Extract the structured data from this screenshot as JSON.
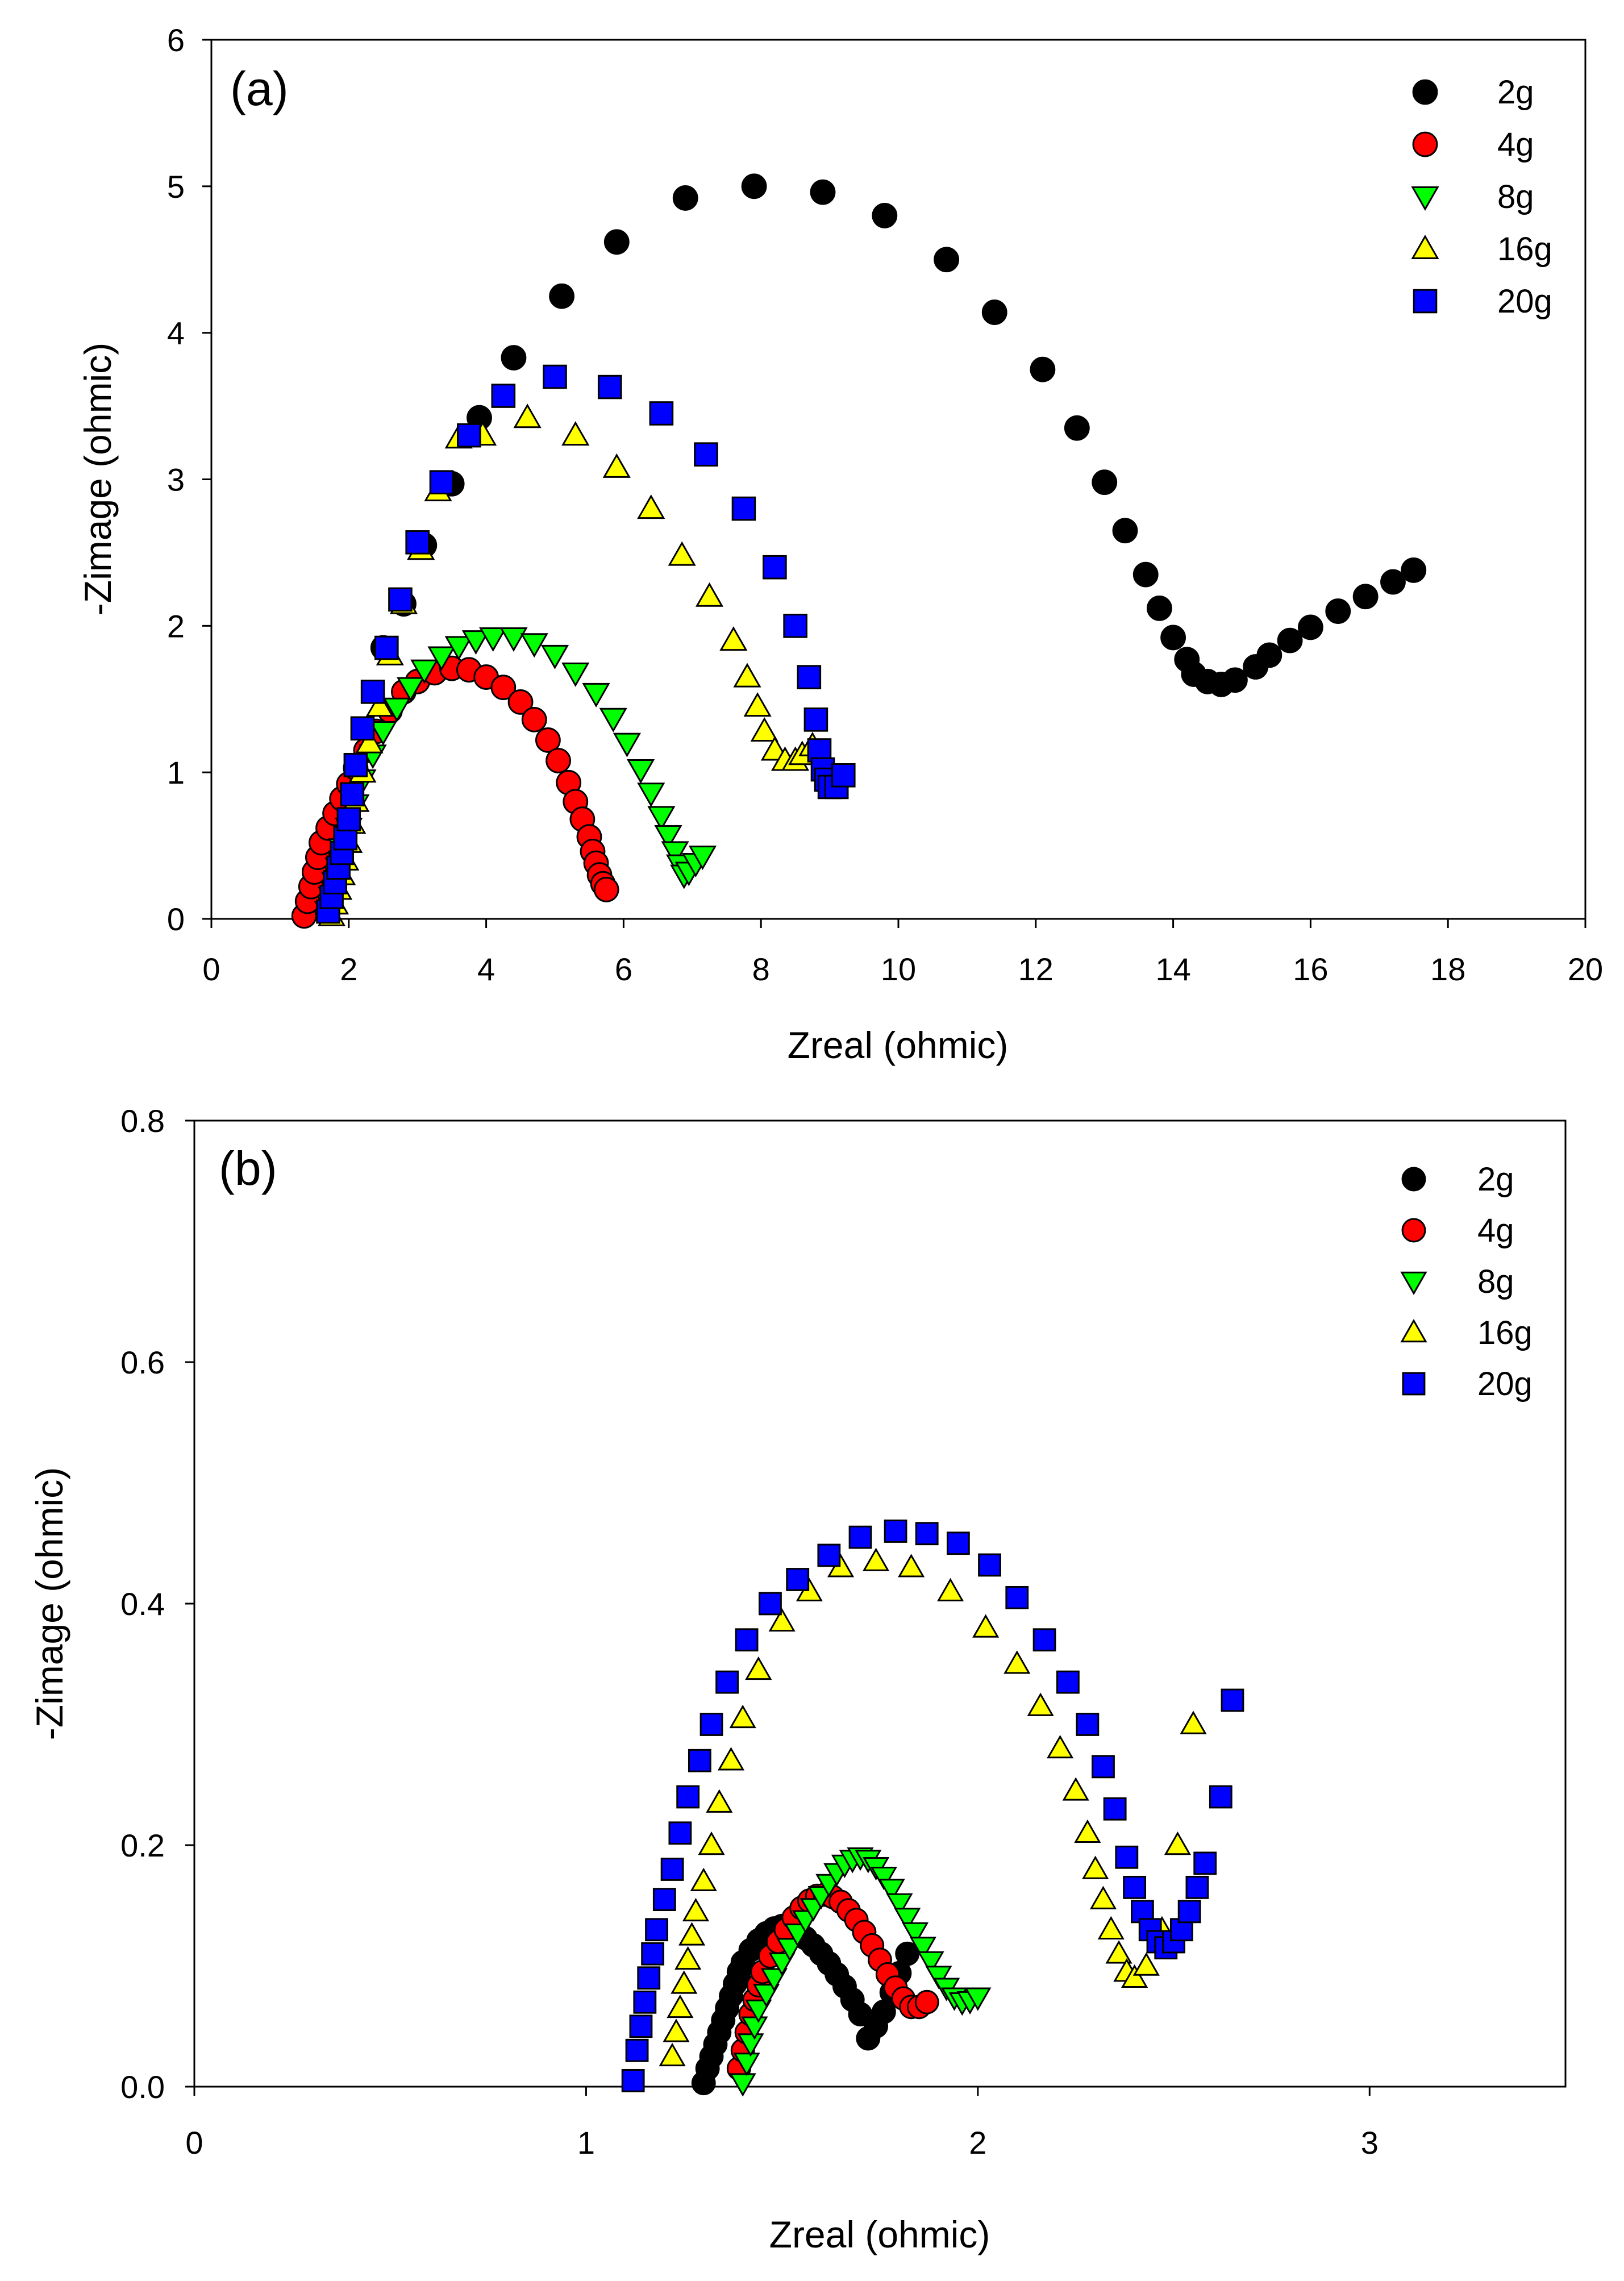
{
  "chart_data": [
    {
      "type": "scatter",
      "panel_label": "(a)",
      "xlabel": "Zreal (ohmic)",
      "ylabel": "-Zimage (ohmic)",
      "xlim": [
        0,
        20
      ],
      "ylim": [
        0,
        6
      ],
      "xticks": [
        0,
        2,
        4,
        6,
        8,
        10,
        12,
        14,
        16,
        18,
        20
      ],
      "yticks": [
        0,
        1,
        2,
        3,
        4,
        5,
        6
      ],
      "legend_position": "top-right",
      "series": [
        {
          "name": "2g",
          "marker": "circle",
          "color": "#000000",
          "x": [
            2.5,
            2.8,
            3.1,
            3.5,
            3.9,
            4.4,
            5.1,
            5.9,
            6.9,
            7.9,
            8.9,
            9.8,
            10.7,
            11.4,
            12.1,
            12.6,
            13.0,
            13.3,
            13.6,
            13.8,
            14.0,
            14.2,
            14.3,
            14.5,
            14.7,
            14.9,
            15.2,
            15.4,
            15.7,
            16.0,
            16.4,
            16.8,
            17.2,
            17.5
          ],
          "y": [
            1.85,
            2.15,
            2.55,
            2.97,
            3.42,
            3.83,
            4.25,
            4.62,
            4.92,
            5.0,
            4.96,
            4.8,
            4.5,
            4.14,
            3.75,
            3.35,
            2.98,
            2.65,
            2.35,
            2.12,
            1.92,
            1.77,
            1.67,
            1.62,
            1.6,
            1.63,
            1.72,
            1.8,
            1.9,
            1.99,
            2.1,
            2.2,
            2.3,
            2.38
          ]
        },
        {
          "name": "4g",
          "marker": "circle",
          "color": "#ff0000",
          "x": [
            1.35,
            1.4,
            1.45,
            1.5,
            1.55,
            1.6,
            1.7,
            1.8,
            1.9,
            2.0,
            2.1,
            2.25,
            2.4,
            2.6,
            2.8,
            3.0,
            3.25,
            3.5,
            3.75,
            4.0,
            4.25,
            4.5,
            4.7,
            4.9,
            5.05,
            5.2,
            5.3,
            5.4,
            5.5,
            5.55,
            5.6,
            5.65,
            5.7,
            5.75
          ],
          "y": [
            0.02,
            0.12,
            0.22,
            0.32,
            0.42,
            0.52,
            0.62,
            0.72,
            0.82,
            0.92,
            1.03,
            1.15,
            1.28,
            1.42,
            1.55,
            1.62,
            1.68,
            1.71,
            1.7,
            1.65,
            1.58,
            1.48,
            1.36,
            1.22,
            1.08,
            0.93,
            0.8,
            0.68,
            0.56,
            0.46,
            0.38,
            0.3,
            0.24,
            0.2
          ]
        },
        {
          "name": "8g",
          "marker": "triangle-down",
          "color": "#00ff00",
          "x": [
            1.7,
            1.75,
            1.8,
            1.85,
            1.9,
            2.0,
            2.1,
            2.2,
            2.35,
            2.5,
            2.7,
            2.9,
            3.1,
            3.35,
            3.6,
            3.85,
            4.1,
            4.4,
            4.7,
            5.0,
            5.3,
            5.6,
            5.85,
            6.05,
            6.25,
            6.4,
            6.55,
            6.65,
            6.75,
            6.82,
            6.88,
            6.95,
            7.05,
            7.15
          ],
          "y": [
            0.05,
            0.15,
            0.25,
            0.35,
            0.48,
            0.62,
            0.78,
            0.95,
            1.12,
            1.28,
            1.44,
            1.58,
            1.7,
            1.79,
            1.86,
            1.9,
            1.92,
            1.92,
            1.88,
            1.8,
            1.68,
            1.54,
            1.37,
            1.2,
            1.02,
            0.86,
            0.7,
            0.57,
            0.46,
            0.37,
            0.3,
            0.32,
            0.38,
            0.43
          ]
        },
        {
          "name": "16g",
          "marker": "triangle-up",
          "color": "#ffff00",
          "x": [
            1.75,
            1.8,
            1.85,
            1.9,
            1.95,
            2.0,
            2.05,
            2.1,
            2.2,
            2.3,
            2.45,
            2.6,
            2.8,
            3.05,
            3.3,
            3.6,
            3.95,
            4.6,
            5.3,
            5.9,
            6.4,
            6.85,
            7.25,
            7.6,
            7.8,
            7.95,
            8.05,
            8.2,
            8.35,
            8.5,
            8.6,
            8.75
          ],
          "y": [
            0.02,
            0.1,
            0.2,
            0.3,
            0.4,
            0.52,
            0.65,
            0.8,
            1.0,
            1.2,
            1.45,
            1.8,
            2.15,
            2.52,
            2.92,
            3.28,
            3.3,
            3.42,
            3.3,
            3.08,
            2.8,
            2.48,
            2.2,
            1.9,
            1.65,
            1.45,
            1.28,
            1.15,
            1.08,
            1.08,
            1.12,
            1.18
          ]
        },
        {
          "name": "20g",
          "marker": "square",
          "color": "#0000ff",
          "x": [
            1.7,
            1.75,
            1.8,
            1.85,
            1.9,
            1.95,
            2.0,
            2.05,
            2.1,
            2.2,
            2.35,
            2.55,
            2.75,
            3.0,
            3.35,
            3.75,
            4.25,
            5.0,
            5.8,
            6.55,
            7.2,
            7.75,
            8.2,
            8.5,
            8.7,
            8.8,
            8.85,
            8.9,
            8.95,
            9.0,
            9.1,
            9.2
          ],
          "y": [
            0.05,
            0.15,
            0.25,
            0.35,
            0.45,
            0.55,
            0.68,
            0.85,
            1.05,
            1.3,
            1.55,
            1.85,
            2.18,
            2.57,
            2.98,
            3.3,
            3.57,
            3.7,
            3.63,
            3.45,
            3.17,
            2.8,
            2.4,
            2.0,
            1.65,
            1.36,
            1.15,
            1.02,
            0.95,
            0.9,
            0.9,
            0.98
          ]
        }
      ]
    },
    {
      "type": "scatter",
      "panel_label": "(b)",
      "xlabel": "Zreal (ohmic)",
      "ylabel": "-Zimage (ohmic)",
      "xlim": [
        0,
        3.5
      ],
      "ylim": [
        0,
        0.8
      ],
      "xticks": [
        0,
        1,
        2,
        3
      ],
      "yticks": [
        0.0,
        0.2,
        0.4,
        0.6,
        0.8
      ],
      "legend_position": "top-right",
      "series": [
        {
          "name": "2g",
          "marker": "circle",
          "color": "#000000",
          "x": [
            1.3,
            1.31,
            1.32,
            1.33,
            1.34,
            1.35,
            1.36,
            1.37,
            1.38,
            1.39,
            1.4,
            1.42,
            1.44,
            1.46,
            1.48,
            1.5,
            1.52,
            1.54,
            1.56,
            1.58,
            1.6,
            1.62,
            1.64,
            1.66,
            1.68,
            1.7,
            1.72,
            1.74,
            1.76,
            1.78,
            1.8,
            1.82
          ],
          "y": [
            0.003,
            0.015,
            0.025,
            0.035,
            0.045,
            0.055,
            0.065,
            0.075,
            0.085,
            0.095,
            0.103,
            0.113,
            0.121,
            0.127,
            0.131,
            0.133,
            0.132,
            0.128,
            0.123,
            0.117,
            0.11,
            0.102,
            0.093,
            0.083,
            0.072,
            0.06,
            0.04,
            0.05,
            0.062,
            0.078,
            0.094,
            0.11
          ]
        },
        {
          "name": "4g",
          "marker": "circle",
          "color": "#ff0000",
          "x": [
            1.39,
            1.4,
            1.41,
            1.42,
            1.43,
            1.44,
            1.45,
            1.47,
            1.49,
            1.51,
            1.53,
            1.55,
            1.57,
            1.59,
            1.61,
            1.63,
            1.65,
            1.67,
            1.69,
            1.71,
            1.73,
            1.75,
            1.77,
            1.79,
            1.81,
            1.83,
            1.85,
            1.87
          ],
          "y": [
            0.015,
            0.03,
            0.045,
            0.06,
            0.072,
            0.084,
            0.095,
            0.108,
            0.12,
            0.13,
            0.14,
            0.148,
            0.154,
            0.158,
            0.159,
            0.157,
            0.153,
            0.146,
            0.138,
            0.128,
            0.117,
            0.105,
            0.093,
            0.082,
            0.073,
            0.066,
            0.066,
            0.07
          ]
        },
        {
          "name": "8g",
          "marker": "triangle-down",
          "color": "#00ff00",
          "x": [
            1.4,
            1.41,
            1.42,
            1.43,
            1.44,
            1.46,
            1.48,
            1.5,
            1.52,
            1.54,
            1.56,
            1.58,
            1.6,
            1.62,
            1.64,
            1.66,
            1.68,
            1.7,
            1.72,
            1.74,
            1.76,
            1.78,
            1.8,
            1.82,
            1.84,
            1.86,
            1.88,
            1.9,
            1.92,
            1.94,
            1.96,
            1.98,
            2.0
          ],
          "y": [
            0.003,
            0.02,
            0.036,
            0.05,
            0.064,
            0.077,
            0.09,
            0.103,
            0.115,
            0.127,
            0.138,
            0.148,
            0.158,
            0.168,
            0.177,
            0.184,
            0.188,
            0.19,
            0.188,
            0.182,
            0.174,
            0.164,
            0.152,
            0.14,
            0.128,
            0.116,
            0.104,
            0.092,
            0.082,
            0.074,
            0.07,
            0.071,
            0.074
          ]
        },
        {
          "name": "16g",
          "marker": "triangle-up",
          "color": "#ffff00",
          "x": [
            1.22,
            1.23,
            1.24,
            1.25,
            1.26,
            1.27,
            1.28,
            1.3,
            1.32,
            1.34,
            1.37,
            1.4,
            1.44,
            1.5,
            1.57,
            1.65,
            1.74,
            1.83,
            1.93,
            2.02,
            2.1,
            2.16,
            2.21,
            2.25,
            2.28,
            2.3,
            2.32,
            2.34,
            2.36,
            2.38,
            2.4,
            2.43,
            2.47,
            2.51,
            2.55
          ],
          "y": [
            0.025,
            0.045,
            0.065,
            0.085,
            0.105,
            0.125,
            0.145,
            0.17,
            0.2,
            0.235,
            0.27,
            0.305,
            0.345,
            0.385,
            0.41,
            0.43,
            0.435,
            0.43,
            0.41,
            0.38,
            0.35,
            0.315,
            0.28,
            0.245,
            0.21,
            0.18,
            0.155,
            0.13,
            0.11,
            0.095,
            0.09,
            0.1,
            0.13,
            0.2,
            0.3
          ]
        },
        {
          "name": "20g",
          "marker": "square",
          "color": "#0000ff",
          "x": [
            1.12,
            1.13,
            1.14,
            1.15,
            1.16,
            1.17,
            1.18,
            1.2,
            1.22,
            1.24,
            1.26,
            1.29,
            1.32,
            1.36,
            1.41,
            1.47,
            1.54,
            1.62,
            1.7,
            1.79,
            1.87,
            1.95,
            2.03,
            2.1,
            2.17,
            2.23,
            2.28,
            2.32,
            2.35,
            2.38,
            2.4,
            2.42,
            2.44,
            2.46,
            2.48,
            2.5,
            2.52,
            2.54,
            2.56,
            2.58,
            2.62,
            2.65
          ],
          "y": [
            0.005,
            0.03,
            0.05,
            0.07,
            0.09,
            0.11,
            0.13,
            0.155,
            0.18,
            0.21,
            0.24,
            0.27,
            0.3,
            0.335,
            0.37,
            0.4,
            0.42,
            0.44,
            0.455,
            0.46,
            0.458,
            0.45,
            0.432,
            0.405,
            0.37,
            0.335,
            0.3,
            0.265,
            0.23,
            0.19,
            0.165,
            0.145,
            0.13,
            0.12,
            0.115,
            0.12,
            0.13,
            0.145,
            0.165,
            0.185,
            0.24,
            0.32
          ]
        }
      ]
    }
  ]
}
